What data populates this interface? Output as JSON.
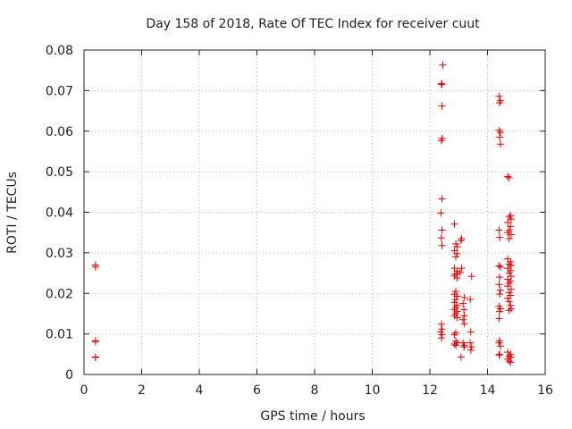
{
  "chart_data": {
    "type": "scatter",
    "title": "Day 158 of 2018, Rate Of TEC Index for receiver cuut",
    "xlabel": "GPS time / hours",
    "ylabel": "ROTI / TECUs",
    "xlim": [
      0,
      16
    ],
    "ylim": [
      0,
      0.08
    ],
    "xticks": [
      0,
      2,
      4,
      6,
      8,
      10,
      12,
      14,
      16
    ],
    "yticks": [
      0,
      0.01,
      0.02,
      0.03,
      0.04,
      0.05,
      0.06,
      0.07,
      0.08
    ],
    "xtick_labels": [
      "0",
      "2",
      "4",
      "6",
      "8",
      "10",
      "12",
      "14",
      "16"
    ],
    "ytick_labels": [
      "0",
      "0.01",
      "0.02",
      "0.03",
      "0.04",
      "0.05",
      "0.06",
      "0.07",
      "0.08"
    ],
    "grid": true,
    "marker": "+",
    "color": "#dd0000",
    "series": [
      {
        "name": "ROTI",
        "points": [
          [
            0.4,
            0.027
          ],
          [
            0.4,
            0.0265
          ],
          [
            0.4,
            0.0083
          ],
          [
            0.4,
            0.0081
          ],
          [
            0.4,
            0.0043
          ],
          [
            0.4,
            0.0042
          ],
          [
            12.45,
            0.0763
          ],
          [
            12.4,
            0.0717
          ],
          [
            12.42,
            0.0715
          ],
          [
            12.42,
            0.0662
          ],
          [
            12.43,
            0.0582
          ],
          [
            12.4,
            0.0577
          ],
          [
            12.42,
            0.0433
          ],
          [
            12.38,
            0.0398
          ],
          [
            12.42,
            0.0356
          ],
          [
            12.4,
            0.0337
          ],
          [
            12.42,
            0.0318
          ],
          [
            12.4,
            0.0124
          ],
          [
            12.42,
            0.0112
          ],
          [
            12.38,
            0.0105
          ],
          [
            12.42,
            0.0098
          ],
          [
            12.4,
            0.009
          ],
          [
            12.85,
            0.0371
          ],
          [
            12.9,
            0.0322
          ],
          [
            12.95,
            0.0315
          ],
          [
            12.85,
            0.0305
          ],
          [
            12.95,
            0.0298
          ],
          [
            12.9,
            0.029
          ],
          [
            12.85,
            0.0262
          ],
          [
            12.95,
            0.0255
          ],
          [
            12.9,
            0.0248
          ],
          [
            12.85,
            0.0243
          ],
          [
            12.95,
            0.0238
          ],
          [
            12.9,
            0.0205
          ],
          [
            12.85,
            0.0198
          ],
          [
            12.95,
            0.0193
          ],
          [
            12.9,
            0.0185
          ],
          [
            12.85,
            0.0178
          ],
          [
            12.95,
            0.017
          ],
          [
            12.9,
            0.0165
          ],
          [
            12.85,
            0.016
          ],
          [
            12.95,
            0.0155
          ],
          [
            12.9,
            0.015
          ],
          [
            12.85,
            0.0145
          ],
          [
            12.95,
            0.014
          ],
          [
            12.9,
            0.0103
          ],
          [
            12.85,
            0.0098
          ],
          [
            12.9,
            0.0082
          ],
          [
            12.95,
            0.0078
          ],
          [
            12.85,
            0.0075
          ],
          [
            12.9,
            0.0072
          ],
          [
            13.1,
            0.0335
          ],
          [
            13.08,
            0.033
          ],
          [
            13.1,
            0.0262
          ],
          [
            13.05,
            0.0251
          ],
          [
            13.2,
            0.019
          ],
          [
            13.15,
            0.0175
          ],
          [
            13.18,
            0.016
          ],
          [
            13.2,
            0.0145
          ],
          [
            13.15,
            0.0135
          ],
          [
            13.2,
            0.0125
          ],
          [
            13.15,
            0.0078
          ],
          [
            13.2,
            0.0072
          ],
          [
            13.18,
            0.0068
          ],
          [
            13.08,
            0.0043
          ],
          [
            13.45,
            0.0242
          ],
          [
            13.4,
            0.0185
          ],
          [
            13.42,
            0.0105
          ],
          [
            13.4,
            0.0078
          ],
          [
            13.45,
            0.0068
          ],
          [
            13.42,
            0.006
          ],
          [
            14.4,
            0.0686
          ],
          [
            14.45,
            0.0675
          ],
          [
            14.42,
            0.067
          ],
          [
            14.4,
            0.0602
          ],
          [
            14.45,
            0.0597
          ],
          [
            14.42,
            0.0585
          ],
          [
            14.45,
            0.0568
          ],
          [
            14.4,
            0.0356
          ],
          [
            14.42,
            0.0338
          ],
          [
            14.4,
            0.0268
          ],
          [
            14.45,
            0.0265
          ],
          [
            14.42,
            0.024
          ],
          [
            14.4,
            0.0222
          ],
          [
            14.45,
            0.0208
          ],
          [
            14.42,
            0.0198
          ],
          [
            14.4,
            0.0168
          ],
          [
            14.45,
            0.0162
          ],
          [
            14.42,
            0.0155
          ],
          [
            14.4,
            0.0138
          ],
          [
            14.42,
            0.0083
          ],
          [
            14.4,
            0.0078
          ],
          [
            14.45,
            0.007
          ],
          [
            14.42,
            0.005
          ],
          [
            14.4,
            0.0048
          ],
          [
            14.7,
            0.0488
          ],
          [
            14.75,
            0.0485
          ],
          [
            14.8,
            0.0392
          ],
          [
            14.75,
            0.0388
          ],
          [
            14.82,
            0.0383
          ],
          [
            14.7,
            0.0375
          ],
          [
            14.8,
            0.0365
          ],
          [
            14.75,
            0.0355
          ],
          [
            14.7,
            0.035
          ],
          [
            14.82,
            0.0345
          ],
          [
            14.75,
            0.0335
          ],
          [
            14.7,
            0.0285
          ],
          [
            14.8,
            0.0278
          ],
          [
            14.75,
            0.0272
          ],
          [
            14.82,
            0.0268
          ],
          [
            14.7,
            0.0262
          ],
          [
            14.8,
            0.0256
          ],
          [
            14.75,
            0.025
          ],
          [
            14.82,
            0.0242
          ],
          [
            14.7,
            0.0235
          ],
          [
            14.8,
            0.023
          ],
          [
            14.75,
            0.0225
          ],
          [
            14.7,
            0.0218
          ],
          [
            14.82,
            0.021
          ],
          [
            14.75,
            0.0202
          ],
          [
            14.8,
            0.0195
          ],
          [
            14.7,
            0.0188
          ],
          [
            14.75,
            0.018
          ],
          [
            14.8,
            0.017
          ],
          [
            14.82,
            0.0162
          ],
          [
            14.75,
            0.0158
          ],
          [
            14.7,
            0.0055
          ],
          [
            14.8,
            0.005
          ],
          [
            14.75,
            0.0045
          ],
          [
            14.82,
            0.0042
          ],
          [
            14.7,
            0.0038
          ],
          [
            14.75,
            0.0033
          ],
          [
            14.8,
            0.003
          ]
        ]
      }
    ]
  }
}
